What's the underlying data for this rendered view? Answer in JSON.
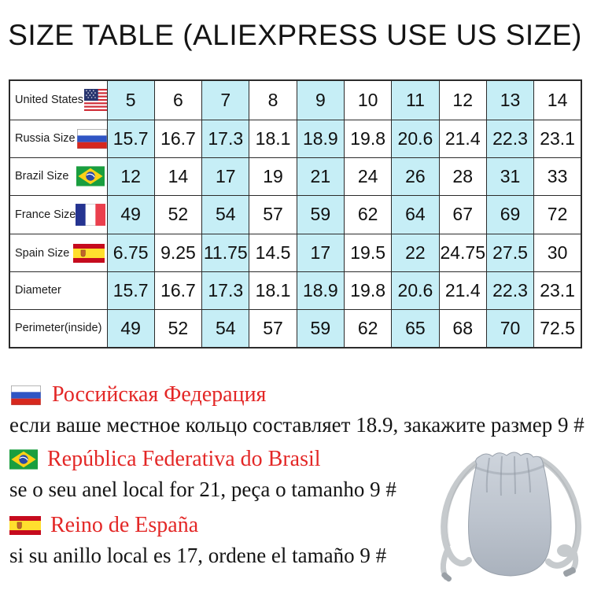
{
  "title": "SIZE TABLE (ALIEXPRESS USE US SIZE)",
  "colors": {
    "highlight": "#c6eef6",
    "red_text": "#e32726",
    "border": "#2b2b2b",
    "pouch_gray": "#b6bdc7"
  },
  "table": {
    "highlight_columns": [
      0,
      2,
      4,
      6,
      8
    ],
    "rows": [
      {
        "label": "United States",
        "flag": "us",
        "values": [
          "5",
          "6",
          "7",
          "8",
          "9",
          "10",
          "11",
          "12",
          "13",
          "14"
        ]
      },
      {
        "label": "Russia Size",
        "flag": "ru",
        "values": [
          "15.7",
          "16.7",
          "17.3",
          "18.1",
          "18.9",
          "19.8",
          "20.6",
          "21.4",
          "22.3",
          "23.1"
        ]
      },
      {
        "label": "Brazil Size",
        "flag": "br",
        "values": [
          "12",
          "14",
          "17",
          "19",
          "21",
          "24",
          "26",
          "28",
          "31",
          "33"
        ]
      },
      {
        "label": "France Size",
        "flag": "fr",
        "values": [
          "49",
          "52",
          "54",
          "57",
          "59",
          "62",
          "64",
          "67",
          "69",
          "72"
        ]
      },
      {
        "label": "Spain Size",
        "flag": "es",
        "values": [
          "6.75",
          "9.25",
          "11.75",
          "14.5",
          "17",
          "19.5",
          "22",
          "24.75",
          "27.5",
          "30"
        ]
      },
      {
        "label": "Diameter",
        "flag": null,
        "values": [
          "15.7",
          "16.7",
          "17.3",
          "18.1",
          "18.9",
          "19.8",
          "20.6",
          "21.4",
          "22.3",
          "23.1"
        ]
      },
      {
        "label": "Perimeter(inside)",
        "flag": null,
        "values": [
          "49",
          "52",
          "54",
          "57",
          "59",
          "62",
          "65",
          "68",
          "70",
          "72.5"
        ]
      }
    ]
  },
  "sections": [
    {
      "flag": "ru",
      "title": "Российская Федерация",
      "body": "если ваше местное кольцо составляет 18.9, закажите размер 9 #"
    },
    {
      "flag": "br",
      "title": "República Federativa do Brasil",
      "body": "se o seu anel local for 21, peça o tamanho 9 #"
    },
    {
      "flag": "es",
      "title": "Reino de España",
      "body": "si su anillo local es 17, ordene el tamaño 9 #"
    }
  ],
  "images": {
    "pouch_bag": "gray-velvet-drawstring-pouch"
  }
}
